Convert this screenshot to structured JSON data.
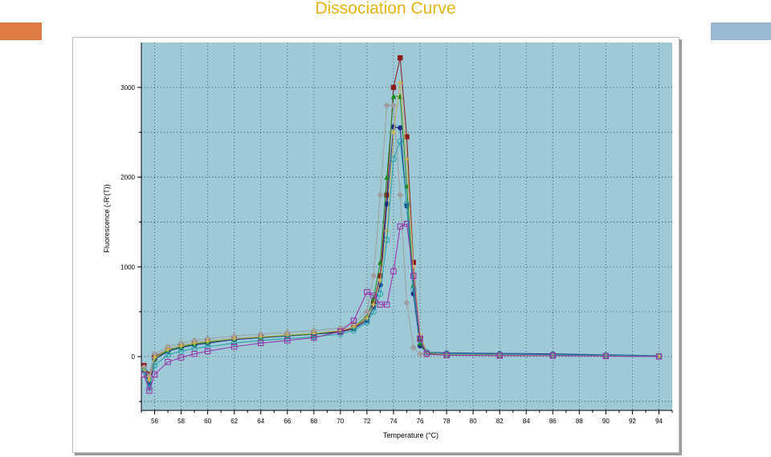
{
  "slide": {
    "title": "Dissociation Curve",
    "accent_left_color": "#e07b45",
    "accent_right_color": "#9ab7d3"
  },
  "chart_data": {
    "type": "line",
    "xlabel": "Temperature (°C)",
    "ylabel": "Fluorescence (-R'(T))",
    "xlim": [
      55,
      95
    ],
    "ylim": [
      -600,
      3500
    ],
    "x_ticks": [
      "56",
      "58",
      "60",
      "62",
      "64",
      "66",
      "68",
      "70",
      "72",
      "74",
      "76",
      "78",
      "80",
      "82",
      "84",
      "86",
      "88",
      "90",
      "92",
      "94"
    ],
    "y_ticks": [
      "0",
      "1000",
      "2000",
      "3000"
    ],
    "grid": true,
    "plot_background": "#9ec9d7",
    "series": [
      {
        "color": "#8b1a1a",
        "marker": "square",
        "points": [
          [
            55.2,
            -100
          ],
          [
            55.6,
            -200
          ],
          [
            56.0,
            0
          ],
          [
            57,
            80
          ],
          [
            58,
            120
          ],
          [
            59,
            150
          ],
          [
            60,
            170
          ],
          [
            62,
            200
          ],
          [
            64,
            220
          ],
          [
            66,
            230
          ],
          [
            68,
            250
          ],
          [
            70,
            280
          ],
          [
            71,
            320
          ],
          [
            72,
            420
          ],
          [
            72.5,
            600
          ],
          [
            73,
            900
          ],
          [
            73.5,
            1800
          ],
          [
            74,
            3000
          ],
          [
            74.5,
            3330
          ],
          [
            75,
            2450
          ],
          [
            75.5,
            1050
          ],
          [
            76,
            200
          ],
          [
            76.5,
            40
          ],
          [
            78,
            20
          ],
          [
            82,
            15
          ],
          [
            86,
            15
          ],
          [
            90,
            10
          ],
          [
            94,
            5
          ]
        ]
      },
      {
        "color": "#1c2a8c",
        "marker": "circle",
        "points": [
          [
            55.2,
            -150
          ],
          [
            55.6,
            -300
          ],
          [
            56.0,
            -30
          ],
          [
            57,
            60
          ],
          [
            58,
            100
          ],
          [
            59,
            130
          ],
          [
            60,
            150
          ],
          [
            62,
            190
          ],
          [
            64,
            210
          ],
          [
            66,
            230
          ],
          [
            68,
            250
          ],
          [
            70,
            270
          ],
          [
            71,
            310
          ],
          [
            72,
            400
          ],
          [
            72.5,
            550
          ],
          [
            73,
            800
          ],
          [
            73.5,
            1700
          ],
          [
            74,
            2560
          ],
          [
            74.5,
            2550
          ],
          [
            75,
            1680
          ],
          [
            75.5,
            700
          ],
          [
            76,
            120
          ],
          [
            76.5,
            50
          ],
          [
            78,
            40
          ],
          [
            82,
            35
          ],
          [
            86,
            30
          ],
          [
            90,
            20
          ],
          [
            94,
            10
          ]
        ]
      },
      {
        "color": "#1e8a1e",
        "marker": "triangle",
        "points": [
          [
            55.2,
            -130
          ],
          [
            55.6,
            -250
          ],
          [
            56.0,
            -20
          ],
          [
            57,
            70
          ],
          [
            58,
            110
          ],
          [
            59,
            140
          ],
          [
            60,
            160
          ],
          [
            62,
            200
          ],
          [
            64,
            215
          ],
          [
            66,
            235
          ],
          [
            68,
            250
          ],
          [
            70,
            290
          ],
          [
            71,
            330
          ],
          [
            72,
            450
          ],
          [
            72.5,
            650
          ],
          [
            73,
            1050
          ],
          [
            73.5,
            2000
          ],
          [
            74,
            2900
          ],
          [
            74.5,
            2900
          ],
          [
            75,
            1900
          ],
          [
            75.5,
            800
          ],
          [
            76,
            150
          ],
          [
            76.5,
            40
          ],
          [
            78,
            25
          ],
          [
            82,
            20
          ],
          [
            86,
            20
          ],
          [
            90,
            15
          ],
          [
            94,
            5
          ]
        ]
      },
      {
        "color": "#9e9e9e",
        "marker": "diamond",
        "points": [
          [
            55.2,
            -120
          ],
          [
            55.6,
            -220
          ],
          [
            56.0,
            30
          ],
          [
            57,
            110
          ],
          [
            58,
            150
          ],
          [
            59,
            180
          ],
          [
            60,
            200
          ],
          [
            62,
            230
          ],
          [
            64,
            250
          ],
          [
            66,
            270
          ],
          [
            68,
            290
          ],
          [
            70,
            320
          ],
          [
            71,
            370
          ],
          [
            72,
            500
          ],
          [
            72.5,
            900
          ],
          [
            73,
            1800
          ],
          [
            73.5,
            2800
          ],
          [
            74,
            2800
          ],
          [
            74.5,
            1800
          ],
          [
            75,
            600
          ],
          [
            75.5,
            100
          ],
          [
            76,
            30
          ],
          [
            76.5,
            20
          ],
          [
            78,
            15
          ],
          [
            82,
            15
          ],
          [
            86,
            10
          ],
          [
            90,
            10
          ],
          [
            94,
            5
          ]
        ]
      },
      {
        "color": "#c8b25a",
        "marker": "star",
        "points": [
          [
            55.2,
            -140
          ],
          [
            55.6,
            -260
          ],
          [
            56.0,
            -10
          ],
          [
            57,
            80
          ],
          [
            58,
            120
          ],
          [
            59,
            150
          ],
          [
            60,
            170
          ],
          [
            62,
            200
          ],
          [
            64,
            220
          ],
          [
            66,
            240
          ],
          [
            68,
            260
          ],
          [
            70,
            290
          ],
          [
            71,
            330
          ],
          [
            72,
            430
          ],
          [
            72.5,
            580
          ],
          [
            73,
            850
          ],
          [
            73.5,
            1400
          ],
          [
            74,
            2500
          ],
          [
            74.5,
            3050
          ],
          [
            75,
            2200
          ],
          [
            75.5,
            1000
          ],
          [
            76,
            250
          ],
          [
            76.5,
            50
          ],
          [
            78,
            20
          ],
          [
            82,
            15
          ],
          [
            86,
            15
          ],
          [
            90,
            10
          ],
          [
            94,
            5
          ]
        ]
      },
      {
        "color": "#20a0a8",
        "marker": "circle-open",
        "points": [
          [
            55.2,
            -160
          ],
          [
            55.6,
            -350
          ],
          [
            56.0,
            -100
          ],
          [
            57,
            20
          ],
          [
            58,
            60
          ],
          [
            59,
            90
          ],
          [
            60,
            110
          ],
          [
            62,
            150
          ],
          [
            64,
            180
          ],
          [
            66,
            200
          ],
          [
            68,
            220
          ],
          [
            70,
            250
          ],
          [
            71,
            290
          ],
          [
            72,
            380
          ],
          [
            72.5,
            500
          ],
          [
            73,
            700
          ],
          [
            73.5,
            1300
          ],
          [
            74,
            2200
          ],
          [
            74.5,
            2400
          ],
          [
            75,
            1700
          ],
          [
            75.5,
            750
          ],
          [
            76,
            180
          ],
          [
            76.5,
            50
          ],
          [
            78,
            30
          ],
          [
            82,
            25
          ],
          [
            86,
            20
          ],
          [
            90,
            15
          ],
          [
            94,
            5
          ]
        ]
      },
      {
        "color": "#9a2aa8",
        "marker": "square-open",
        "points": [
          [
            55.2,
            -200
          ],
          [
            55.6,
            -380
          ],
          [
            56.0,
            -200
          ],
          [
            57,
            -60
          ],
          [
            58,
            -10
          ],
          [
            59,
            30
          ],
          [
            60,
            60
          ],
          [
            62,
            110
          ],
          [
            64,
            150
          ],
          [
            66,
            180
          ],
          [
            68,
            210
          ],
          [
            70,
            280
          ],
          [
            71,
            400
          ],
          [
            72,
            720
          ],
          [
            72.5,
            680
          ],
          [
            73,
            580
          ],
          [
            73.5,
            580
          ],
          [
            74,
            950
          ],
          [
            74.5,
            1450
          ],
          [
            75,
            1480
          ],
          [
            75.5,
            900
          ],
          [
            76,
            200
          ],
          [
            76.5,
            30
          ],
          [
            78,
            15
          ],
          [
            82,
            10
          ],
          [
            86,
            10
          ],
          [
            90,
            5
          ],
          [
            94,
            0
          ]
        ]
      }
    ]
  }
}
